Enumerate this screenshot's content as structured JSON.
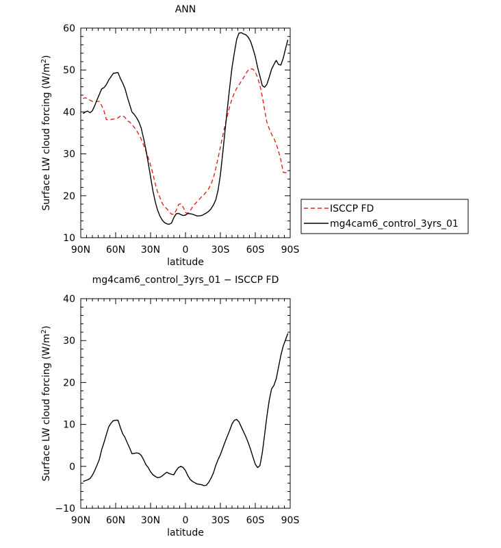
{
  "chart_data": [
    {
      "type": "line",
      "title": "ANN",
      "xlabel": "latitude",
      "ylabel": "Surface LW cloud forcing (W/m²)",
      "ylabel_parts": [
        "Surface LW cloud forcing (W/m",
        "2",
        ")"
      ],
      "xlim": [
        90,
        -90
      ],
      "ylim": [
        10,
        60
      ],
      "x_ticks": [
        90,
        60,
        30,
        0,
        -30,
        -60,
        -90
      ],
      "x_tick_labels": [
        "90N",
        "60N",
        "30N",
        "0",
        "30S",
        "60S",
        "90S"
      ],
      "y_ticks": [
        10,
        20,
        30,
        40,
        50,
        60
      ],
      "y_tick_labels": [
        "10",
        "20",
        "30",
        "40",
        "50",
        "60"
      ],
      "legend_position": "right",
      "series": [
        {
          "name": "ISCCP FD",
          "color": "#e0201c",
          "dash": "dashed",
          "x": [
            88,
            86,
            84,
            82,
            80,
            78,
            76,
            74,
            72,
            70,
            68,
            66,
            64,
            62,
            60,
            58,
            56,
            54,
            52,
            50,
            48,
            46,
            44,
            42,
            40,
            38,
            36,
            34,
            32,
            30,
            28,
            26,
            24,
            22,
            20,
            18,
            16,
            14,
            12,
            10,
            8,
            6,
            4,
            2,
            0,
            -2,
            -4,
            -6,
            -8,
            -10,
            -12,
            -14,
            -16,
            -18,
            -20,
            -22,
            -24,
            -26,
            -28,
            -30,
            -32,
            -34,
            -36,
            -38,
            -40,
            -42,
            -44,
            -46,
            -48,
            -50,
            -52,
            -54,
            -56,
            -58,
            -60,
            -62,
            -64,
            -66,
            -68,
            -70,
            -72,
            -74,
            -76,
            -78,
            -80,
            -82,
            -84,
            -86,
            -88
          ],
          "values": [
            43.2,
            43.4,
            43.1,
            42.8,
            42.5,
            42.4,
            42.5,
            42.5,
            41.5,
            40.2,
            38.2,
            38.1,
            38.2,
            38.3,
            38.3,
            38.6,
            39,
            39.1,
            38.7,
            37.9,
            37.6,
            37,
            36.3,
            35.5,
            34.6,
            33.5,
            32.1,
            30.6,
            29.1,
            27.3,
            25.3,
            22.9,
            20.9,
            19.6,
            18.2,
            17.4,
            16.9,
            16.2,
            15.6,
            15.6,
            16.5,
            17.9,
            18.1,
            17.3,
            16,
            15.8,
            16.4,
            17.3,
            18,
            18.6,
            19.2,
            19.8,
            20.3,
            21,
            21.7,
            22.8,
            24.3,
            26.5,
            29,
            31.6,
            34.3,
            36.8,
            39.1,
            41.3,
            43.1,
            44.5,
            45.6,
            46.5,
            47.3,
            48.2,
            49.2,
            50,
            50.3,
            50.2,
            49.5,
            48.2,
            46.3,
            43.7,
            40.5,
            37.5,
            36,
            34.7,
            33.7,
            32.4,
            30.6,
            28.5,
            25.6,
            25.5,
            25.5
          ]
        },
        {
          "name": "mg4cam6_control_3yrs_01",
          "color": "#000000",
          "dash": "solid",
          "x": [
            88,
            86,
            84,
            82,
            80,
            78,
            76,
            74,
            72,
            70,
            68,
            66,
            64,
            62,
            60,
            58,
            56,
            54,
            52,
            50,
            48,
            46,
            44,
            42,
            40,
            38,
            36,
            34,
            32,
            30,
            28,
            26,
            24,
            22,
            20,
            18,
            16,
            14,
            12,
            10,
            8,
            6,
            4,
            2,
            0,
            -2,
            -4,
            -6,
            -8,
            -10,
            -12,
            -14,
            -16,
            -18,
            -20,
            -22,
            -24,
            -26,
            -28,
            -30,
            -32,
            -34,
            -36,
            -38,
            -40,
            -42,
            -44,
            -46,
            -48,
            -50,
            -52,
            -54,
            -56,
            -58,
            -60,
            -62,
            -64,
            -66,
            -68,
            -70,
            -72,
            -74,
            -76,
            -78,
            -80,
            -82,
            -84,
            -86,
            -88
          ],
          "values": [
            39.6,
            40,
            40.2,
            39.8,
            40.3,
            41.5,
            42.9,
            44.2,
            45.5,
            45.8,
            46.5,
            47.6,
            48.4,
            49.2,
            49.3,
            49.4,
            48,
            46.9,
            45.6,
            43.6,
            41.8,
            40,
            39.4,
            38.6,
            37.6,
            36.1,
            33.7,
            31,
            27.8,
            24.5,
            21.2,
            18.6,
            16.6,
            15.2,
            14.2,
            13.6,
            13.3,
            13.2,
            13.5,
            14.8,
            15.7,
            15.8,
            15.5,
            15.3,
            15.4,
            15.8,
            15.7,
            15.6,
            15.4,
            15.2,
            15.2,
            15.3,
            15.6,
            15.9,
            16.3,
            16.9,
            17.8,
            19,
            21.3,
            25,
            30.1,
            35.5,
            40.8,
            45.9,
            50.6,
            54.1,
            57.3,
            58.8,
            58.9,
            58.6,
            58.4,
            57.8,
            56.8,
            55.1,
            53.2,
            50.6,
            48.5,
            46.3,
            45.9,
            46.6,
            48.3,
            50.2,
            51.3,
            52.3,
            51.3,
            51.2,
            52.8,
            55.1,
            57.2
          ]
        }
      ]
    },
    {
      "type": "line",
      "title": "mg4cam6_control_3yrs_01 − ISCCP FD",
      "xlabel": "latitude",
      "ylabel": "Surface LW cloud forcing (W/m²)",
      "ylabel_parts": [
        "Surface LW cloud forcing (W/m",
        "2",
        ")"
      ],
      "xlim": [
        90,
        -90
      ],
      "ylim": [
        -10,
        40
      ],
      "x_ticks": [
        90,
        60,
        30,
        0,
        -30,
        -60,
        -90
      ],
      "x_tick_labels": [
        "90N",
        "60N",
        "30N",
        "0",
        "30S",
        "60S",
        "90S"
      ],
      "y_ticks": [
        -10,
        0,
        10,
        20,
        30,
        40
      ],
      "y_tick_labels": [
        "−10",
        "0",
        "10",
        "20",
        "30",
        "40"
      ],
      "series": [
        {
          "color": "#000000",
          "dash": "solid",
          "x": [
            88,
            86,
            84,
            82,
            80,
            78,
            76,
            74,
            72,
            70,
            68,
            66,
            64,
            62,
            60,
            58,
            56,
            54,
            52,
            50,
            48,
            46,
            44,
            42,
            40,
            38,
            36,
            34,
            32,
            30,
            28,
            26,
            24,
            22,
            20,
            18,
            16,
            14,
            12,
            10,
            8,
            6,
            4,
            2,
            0,
            -2,
            -4,
            -6,
            -8,
            -10,
            -12,
            -14,
            -16,
            -18,
            -20,
            -22,
            -24,
            -26,
            -28,
            -30,
            -32,
            -34,
            -36,
            -38,
            -40,
            -42,
            -44,
            -46,
            -48,
            -50,
            -52,
            -54,
            -56,
            -58,
            -60,
            -62,
            -64,
            -66,
            -68,
            -70,
            -72,
            -74,
            -76,
            -78,
            -80,
            -82,
            -84,
            -86,
            -88
          ],
          "values": [
            -3.6,
            -3.4,
            -3.2,
            -2.9,
            -2.1,
            -1,
            0.3,
            1.7,
            4,
            5.7,
            7.6,
            9.4,
            10.3,
            10.9,
            11,
            11,
            9.3,
            7.8,
            6.9,
            5.6,
            4.4,
            3,
            3.1,
            3.2,
            3.1,
            2.6,
            1.6,
            0.4,
            -0.3,
            -1.3,
            -2,
            -2.4,
            -2.7,
            -2.6,
            -2.3,
            -1.8,
            -1.4,
            -1.7,
            -1.9,
            -2,
            -1,
            -0.3,
            0,
            -0.3,
            -1,
            -2.2,
            -3.1,
            -3.6,
            -3.9,
            -4.2,
            -4.3,
            -4.4,
            -4.6,
            -4.5,
            -3.8,
            -2.8,
            -1.6,
            0.2,
            1.6,
            2.8,
            4.3,
            5.8,
            7.2,
            8.6,
            10.1,
            11,
            11.2,
            10.6,
            9.4,
            8.2,
            7,
            5.6,
            4,
            2.2,
            0.5,
            -0.3,
            0.2,
            3.2,
            7.5,
            12,
            15.8,
            18.5,
            19.3,
            20.9,
            23.7,
            26.5,
            28.7,
            30.2,
            31.7
          ]
        }
      ]
    }
  ]
}
